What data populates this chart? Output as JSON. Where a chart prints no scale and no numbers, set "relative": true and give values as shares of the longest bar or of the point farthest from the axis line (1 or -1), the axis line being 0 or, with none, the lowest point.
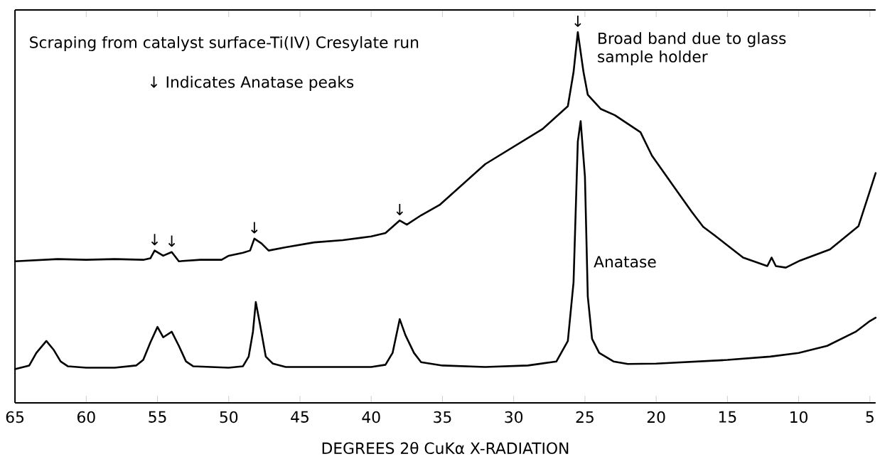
{
  "chart_data": {
    "type": "line",
    "relative": true,
    "xlabel": "DEGREES 2θ CuKα X-RADIATION",
    "xlim": [
      65,
      4.6
    ],
    "xticks": [
      65,
      60,
      55,
      50,
      45,
      40,
      35,
      30,
      25,
      20,
      15,
      10,
      5
    ],
    "marker": "none",
    "line_style": "solid",
    "series": [
      {
        "color": "#000000",
        "x": [
          65,
          62,
          60,
          58,
          56,
          55.5,
          55.2,
          54.6,
          54.0,
          53.5,
          52,
          50.5,
          50,
          49,
          48.5,
          48.2,
          47.7,
          47.2,
          46,
          44,
          42,
          40,
          39,
          38,
          37.5,
          36.5,
          35.2,
          32,
          28,
          26.2,
          25.8,
          25.5,
          25.1,
          24.8,
          23.9,
          22.9,
          21.1,
          20.3,
          18.9,
          17.5,
          16.7,
          15.9,
          13.9,
          12.2,
          11.9,
          11.6,
          10.9,
          9.9,
          7.8,
          5.8,
          5,
          4.6
        ],
        "values": [
          0.382,
          0.388,
          0.386,
          0.388,
          0.386,
          0.39,
          0.411,
          0.397,
          0.407,
          0.382,
          0.386,
          0.386,
          0.397,
          0.405,
          0.411,
          0.443,
          0.43,
          0.411,
          0.42,
          0.433,
          0.439,
          0.449,
          0.458,
          0.492,
          0.481,
          0.506,
          0.534,
          0.644,
          0.738,
          0.8,
          0.892,
          1.0,
          0.892,
          0.831,
          0.793,
          0.776,
          0.73,
          0.667,
          0.591,
          0.515,
          0.475,
          0.452,
          0.392,
          0.369,
          0.392,
          0.369,
          0.365,
          0.384,
          0.414,
          0.477,
          0.572,
          0.62
        ]
      },
      {
        "color": "#000000",
        "x": [
          65,
          64,
          63.5,
          62.8,
          62.3,
          61.8,
          61.3,
          60,
          58,
          56.5,
          56,
          55.5,
          55.0,
          54.6,
          54.0,
          53.5,
          53,
          52.5,
          50,
          49,
          48.6,
          48.3,
          48.1,
          47.8,
          47.4,
          46.9,
          46,
          40,
          39,
          38.5,
          38.0,
          37.6,
          37,
          36.5,
          35,
          32,
          29,
          27,
          26.2,
          25.8,
          25.5,
          25.3,
          25.0,
          24.8,
          24.5,
          24,
          23,
          22,
          20,
          15,
          12,
          10,
          8,
          6,
          5,
          4.6
        ],
        "values": [
          0.091,
          0.101,
          0.135,
          0.167,
          0.144,
          0.112,
          0.099,
          0.095,
          0.095,
          0.101,
          0.116,
          0.163,
          0.205,
          0.177,
          0.192,
          0.154,
          0.112,
          0.099,
          0.095,
          0.099,
          0.125,
          0.192,
          0.272,
          0.211,
          0.125,
          0.106,
          0.097,
          0.097,
          0.103,
          0.135,
          0.226,
          0.183,
          0.135,
          0.11,
          0.101,
          0.097,
          0.101,
          0.112,
          0.167,
          0.325,
          0.705,
          0.76,
          0.61,
          0.287,
          0.173,
          0.135,
          0.112,
          0.105,
          0.106,
          0.116,
          0.125,
          0.135,
          0.154,
          0.192,
          0.221,
          0.23
        ]
      }
    ],
    "annotations": [
      "Scraping from catalyst surface-Ti(IV) Cresylate run",
      "↓ Indicates Anatase peaks",
      "Broad band due to glass sample holder",
      "Anatase",
      {
        "text": "↓",
        "x": 55.2,
        "y": 0.411
      },
      {
        "text": "↓",
        "x": 54.0,
        "y": 0.407
      },
      {
        "text": "↓",
        "x": 48.2,
        "y": 0.443
      },
      {
        "text": "↓",
        "x": 38.0,
        "y": 0.492
      },
      {
        "text": "↓",
        "x": 25.5,
        "y": 1.0
      }
    ]
  }
}
